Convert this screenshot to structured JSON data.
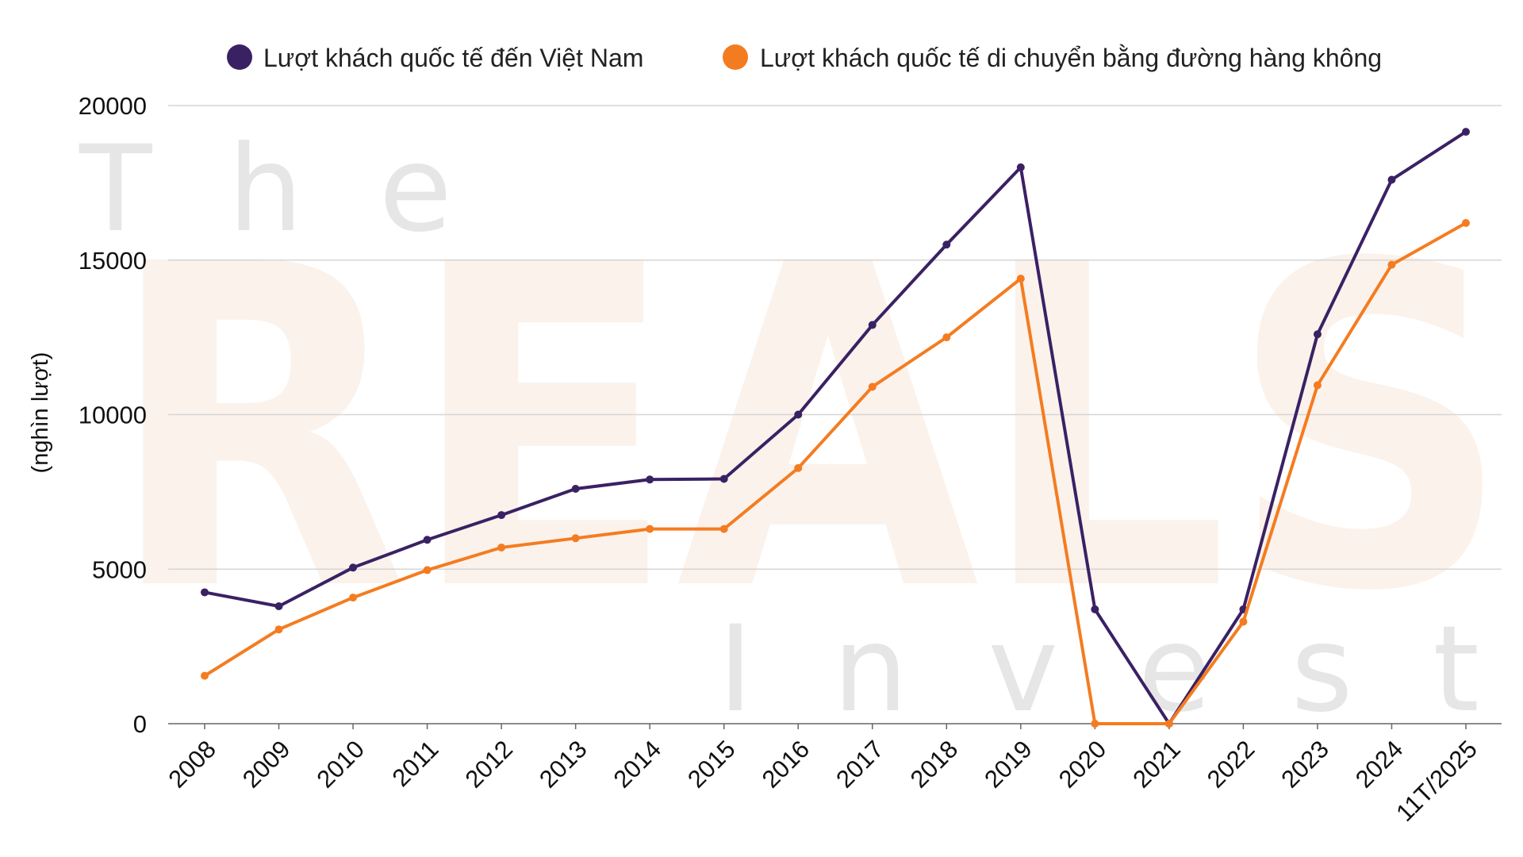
{
  "watermark": {
    "top": "The",
    "middle": "REALS",
    "bottom": "Invest"
  },
  "chart_data": {
    "type": "line",
    "title": "",
    "xlabel": "",
    "ylabel": "(nghìn lượt)",
    "categories": [
      "2008",
      "2009",
      "2010",
      "2011",
      "2012",
      "2013",
      "2014",
      "2015",
      "2016",
      "2017",
      "2018",
      "2019",
      "2020",
      "2021",
      "2022",
      "2023",
      "2024",
      "11T/2025"
    ],
    "ylim": [
      0,
      20000
    ],
    "yticks": [
      0,
      5000,
      10000,
      15000,
      20000
    ],
    "grid": true,
    "legend_position": "top",
    "series": [
      {
        "name": "Lượt khách quốc tế đến Việt Nam",
        "color": "#3a2164",
        "values": [
          4250,
          3800,
          5050,
          5950,
          6750,
          7600,
          7900,
          7920,
          10000,
          12900,
          15500,
          18000,
          3700,
          0,
          3700,
          12600,
          17600,
          19150
        ]
      },
      {
        "name": "Lượt khách quốc tế di chuyển bằng đường hàng không",
        "color": "#f47c20",
        "values": [
          1550,
          3050,
          4080,
          4970,
          5700,
          6000,
          6300,
          6300,
          8270,
          10900,
          12500,
          14400,
          0,
          0,
          3300,
          10950,
          14850,
          16200
        ]
      }
    ]
  }
}
